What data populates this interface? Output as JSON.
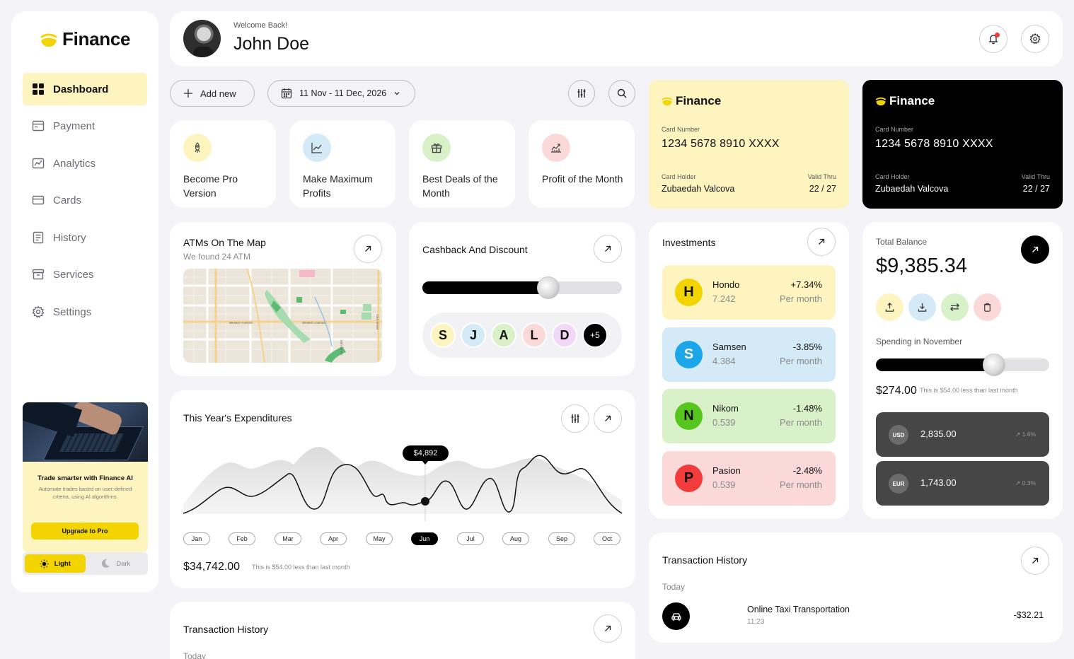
{
  "app": {
    "name": "Finance"
  },
  "sidebar": {
    "items": [
      {
        "label": "Dashboard",
        "icon": "grid-icon",
        "active": true
      },
      {
        "label": "Payment",
        "icon": "payment-icon"
      },
      {
        "label": "Analytics",
        "icon": "analytics-icon"
      },
      {
        "label": "Cards",
        "icon": "card-icon"
      },
      {
        "label": "History",
        "icon": "history-icon"
      },
      {
        "label": "Services",
        "icon": "services-icon"
      },
      {
        "label": "Settings",
        "icon": "gear-icon"
      }
    ],
    "promo": {
      "title": "Trade smarter with Finance AI",
      "description": "Automate trades based on user-defined criteria, using AI algorithms.",
      "button": "Upgrade to Pro"
    },
    "theme": {
      "light": "Light",
      "dark": "Dark",
      "selected": "Light"
    }
  },
  "header": {
    "welcome": "Welcome Back!",
    "user_name": "John Doe"
  },
  "toolbar": {
    "add_new": "Add new",
    "date_range": "11 Nov - 11 Dec, 2026"
  },
  "quick_actions": [
    {
      "label": "Become Pro Version",
      "icon": "rocket-icon",
      "color": "#fdf4bf"
    },
    {
      "label": "Make Maximum Profits",
      "icon": "chart-line-icon",
      "color": "#d4ebf7"
    },
    {
      "label": "Best Deals of the Month",
      "icon": "gift-icon",
      "color": "#d8f1c8"
    },
    {
      "label": "Profit of the Month",
      "icon": "trend-icon",
      "color": "#fbd9d9"
    }
  ],
  "atm": {
    "title": "ATMs On The Map",
    "subtitle": "We found 24 ATM",
    "streets": [
      "Western Avenue",
      "Western Avenue",
      "76th Street",
      "73rd Street"
    ]
  },
  "cashback": {
    "title": "Cashback And Discount",
    "slider_fraction": 0.63,
    "contacts": [
      {
        "letter": "S",
        "color": "#fdf4bf"
      },
      {
        "letter": "J",
        "color": "#d4ebf7"
      },
      {
        "letter": "A",
        "color": "#d8f1c8"
      },
      {
        "letter": "L",
        "color": "#fbd9d9"
      },
      {
        "letter": "D",
        "color": "#f1d8f7"
      }
    ],
    "more": "+5"
  },
  "expenditures": {
    "title": "This Year's Expenditures",
    "tooltip": "$4,892",
    "months": [
      "Jan",
      "Feb",
      "Mar",
      "Apr",
      "May",
      "Jun",
      "Jul",
      "Aug",
      "Sep",
      "Oct"
    ],
    "selected_month": "Jun",
    "total": "$34,742.00",
    "note": "This is $54.00 less than last month"
  },
  "transactions_left": {
    "title": "Transaction History",
    "group": "Today"
  },
  "cards": [
    {
      "brand": "Finance",
      "number_label": "Card Number",
      "number": "1234 5678 8910 XXXX",
      "holder_label": "Card Holder",
      "holder": "Zubaedah Valcova",
      "valid_label": "Valid Thru",
      "valid": "22 / 27",
      "theme": "light",
      "bg": "#fdf4bf"
    },
    {
      "brand": "Finance",
      "number_label": "Card Number",
      "number": "1234 5678 8910 XXXX",
      "holder_label": "Card Holder",
      "holder": "Zubaedah Valcova",
      "valid_label": "Valid Thru",
      "valid": "22 / 27",
      "theme": "dark",
      "bg": "#000000"
    }
  ],
  "investments": {
    "title": "Investments",
    "items": [
      {
        "letter": "H",
        "name": "Hondo",
        "value": "7.242",
        "change": "+7.34%",
        "period": "Per month",
        "bg": "#fdf4bf",
        "circle": "#f2d400",
        "fg": "#111111"
      },
      {
        "letter": "S",
        "name": "Samsen",
        "value": "4.384",
        "change": "-3.85%",
        "period": "Per month",
        "bg": "#d4ebf7",
        "circle": "#1aa6e8",
        "fg": "#ffffff"
      },
      {
        "letter": "N",
        "name": "Nikom",
        "value": "0.539",
        "change": "-1.48%",
        "period": "Per month",
        "bg": "#d8f1c8",
        "circle": "#56c61e",
        "fg": "#111111"
      },
      {
        "letter": "P",
        "name": "Pasion",
        "value": "0.539",
        "change": "-2.48%",
        "period": "Per month",
        "bg": "#fbd9d9",
        "circle": "#f23c3c",
        "fg": "#111111"
      }
    ]
  },
  "balance": {
    "title": "Total Balance",
    "amount": "$9,385.34",
    "actions": [
      {
        "icon": "upload-icon",
        "color": "#fdf4bf"
      },
      {
        "icon": "download-icon",
        "color": "#d4ebf7"
      },
      {
        "icon": "transfer-icon",
        "color": "#d8f1c8"
      },
      {
        "icon": "delete-icon",
        "color": "#fbd9d9"
      }
    ],
    "spending_label": "Spending in November",
    "spending_fraction": 0.68,
    "spending": "$274.00",
    "spending_note": "This is $54.00 less than last month",
    "currencies": [
      {
        "code": "USD",
        "amount": "2,835.00",
        "change": "1.6%"
      },
      {
        "code": "EUR",
        "amount": "1,743.00",
        "change": "0.3%"
      }
    ]
  },
  "transactions": {
    "title": "Transaction History",
    "group": "Today",
    "items": [
      {
        "name": "Online Taxi Transportation",
        "time": "11:23",
        "amount": "-$32.21",
        "icon": "car-icon"
      }
    ]
  }
}
